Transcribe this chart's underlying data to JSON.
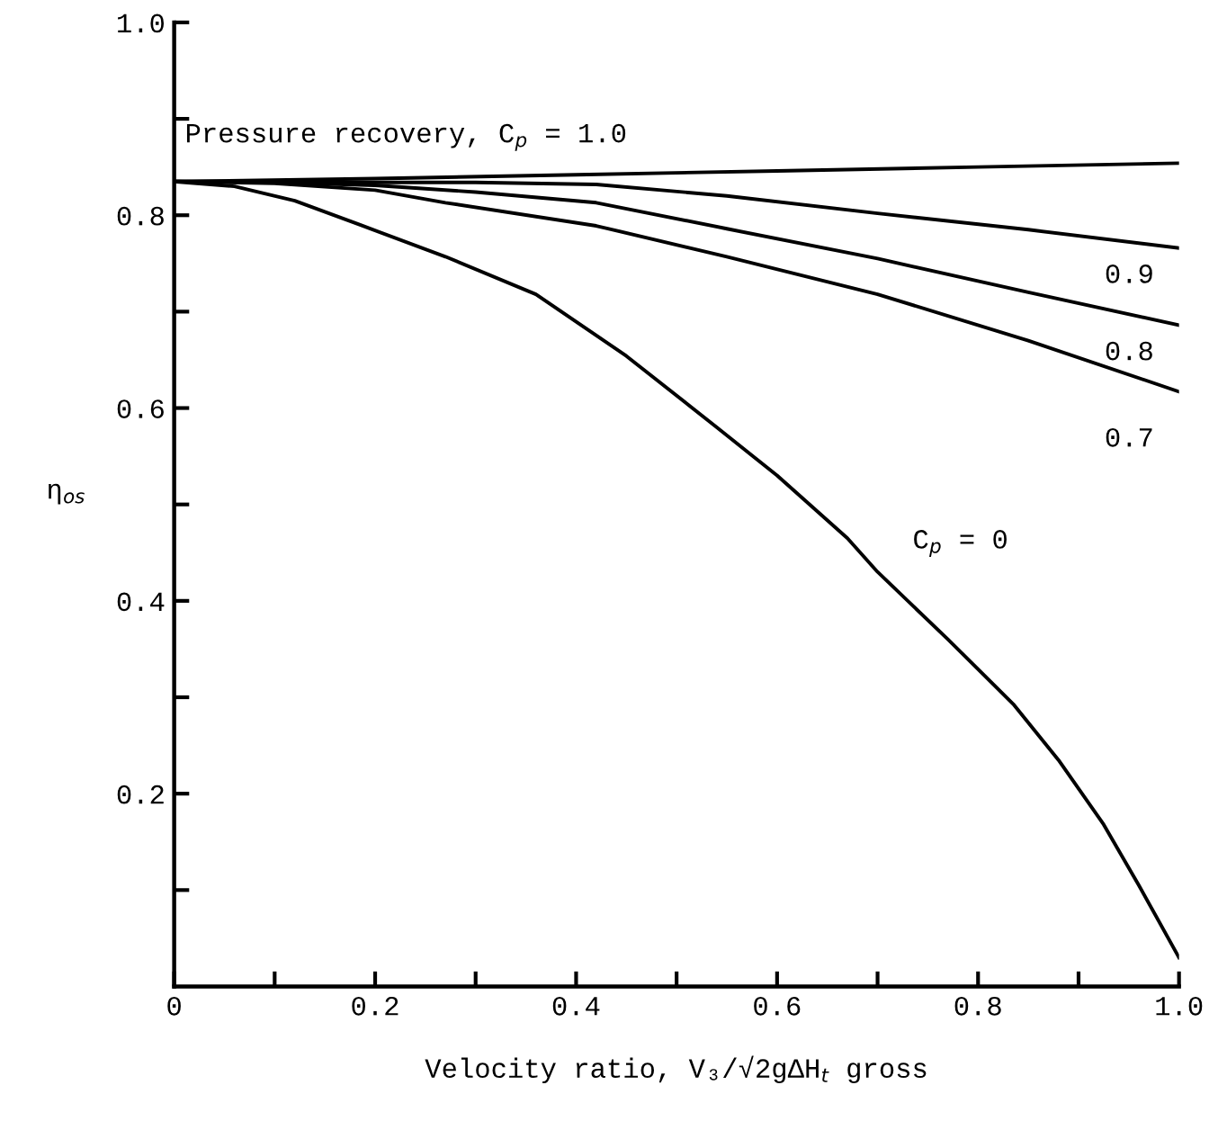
{
  "chart_data": {
    "type": "line",
    "xlabel": "Velocity ratio, V₃/√2gΔH$_{t}$ gross",
    "ylabel": "η$_{os}$",
    "xlim": [
      0,
      1.0
    ],
    "ylim": [
      0,
      1.0
    ],
    "xticks": [
      {
        "value": 0,
        "label": "0"
      },
      {
        "value": 0.1,
        "label": null
      },
      0.2,
      {
        "value": 0.3,
        "label": null
      },
      0.4,
      {
        "value": 0.5,
        "label": null
      },
      0.6,
      {
        "value": 0.7,
        "label": null
      },
      0.8,
      {
        "value": 0.9,
        "label": null
      },
      {
        "value": 1.0,
        "label": "1.0"
      }
    ],
    "yticks": [
      {
        "value": 0.1,
        "label": null
      },
      0.2,
      {
        "value": 0.3,
        "label": null
      },
      0.4,
      {
        "value": 0.5,
        "label": null
      },
      0.6,
      {
        "value": 0.7,
        "label": null
      },
      0.8,
      {
        "value": 0.9,
        "label": null
      },
      {
        "value": 1.0,
        "label": "1.0"
      }
    ],
    "grid": false,
    "legend": false,
    "marker": "none",
    "line_style": "solid",
    "series": [
      {
        "name": "Pressure recovery, C$_{p}$ = 1.0",
        "color": "#000000",
        "x": [
          0,
          0.2,
          0.4,
          0.6,
          0.8,
          1.0
        ],
        "values": [
          0.835,
          0.838,
          0.842,
          0.846,
          0.85,
          0.854
        ]
      },
      {
        "name": "0.9",
        "color": "#000000",
        "x": [
          0,
          0.1,
          0.2,
          0.3,
          0.42,
          0.55,
          0.7,
          0.85,
          1.0
        ],
        "values": [
          0.835,
          0.835,
          0.834,
          0.834,
          0.832,
          0.82,
          0.802,
          0.785,
          0.766
        ]
      },
      {
        "name": "0.8",
        "color": "#000000",
        "x": [
          0,
          0.1,
          0.2,
          0.3,
          0.42,
          0.55,
          0.7,
          0.85,
          1.0
        ],
        "values": [
          0.835,
          0.834,
          0.831,
          0.824,
          0.813,
          0.786,
          0.755,
          0.72,
          0.686
        ]
      },
      {
        "name": "0.7",
        "color": "#000000",
        "x": [
          0,
          0.1,
          0.2,
          0.27,
          0.42,
          0.55,
          0.7,
          0.85,
          1.0
        ],
        "values": [
          0.835,
          0.833,
          0.826,
          0.813,
          0.789,
          0.757,
          0.718,
          0.67,
          0.617
        ]
      },
      {
        "name": "C$_{p}$ = 0",
        "color": "#000000",
        "x": [
          0,
          0.06,
          0.12,
          0.185,
          0.27,
          0.36,
          0.45,
          0.54,
          0.6,
          0.67,
          0.7,
          0.77,
          0.835,
          0.88,
          0.925,
          0.96,
          1.0
        ],
        "values": [
          0.835,
          0.83,
          0.815,
          0.79,
          0.757,
          0.718,
          0.654,
          0.58,
          0.53,
          0.465,
          0.43,
          0.36,
          0.293,
          0.235,
          0.168,
          0.105,
          0.03
        ]
      }
    ]
  }
}
